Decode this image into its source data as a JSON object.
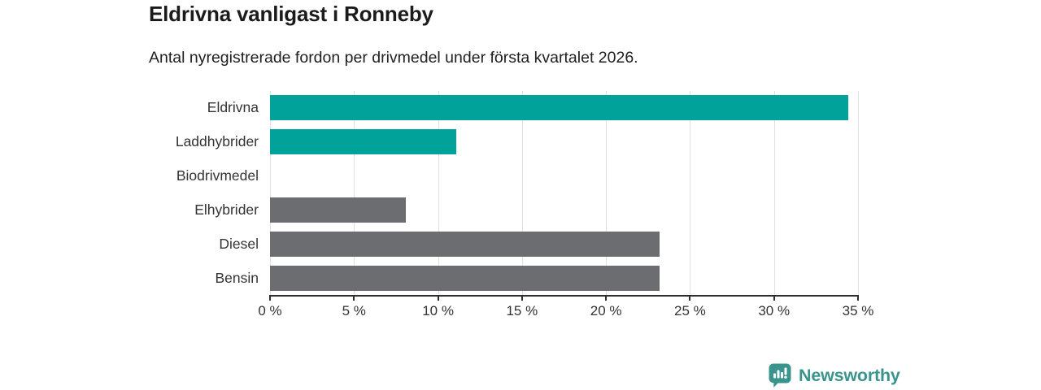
{
  "header": {
    "title": "Eldrivna vanligast i Ronneby",
    "subtitle": "Antal nyregistrerade fordon per drivmedel under första kvartalet 2026."
  },
  "chart_data": {
    "type": "bar",
    "orientation": "horizontal",
    "title": "Eldrivna vanligast i Ronneby",
    "subtitle": "Antal nyregistrerade fordon per drivmedel under första kvartalet 2026.",
    "categories": [
      "Eldrivna",
      "Laddhybrider",
      "Biodrivmedel",
      "Elhybrider",
      "Diesel",
      "Bensin"
    ],
    "values": [
      34.4,
      11.1,
      0,
      8.1,
      23.2,
      23.2
    ],
    "unit": "%",
    "bar_colors": [
      "#00a29a",
      "#00a29a",
      "#6c6d71",
      "#6c6d71",
      "#6c6d71",
      "#6c6d71"
    ],
    "highlight_color": "#00a29a",
    "default_color": "#6c6d71",
    "xlim": [
      0,
      35
    ],
    "x_ticks": [
      0,
      5,
      10,
      15,
      20,
      25,
      30,
      35
    ],
    "x_tick_labels": [
      "0 %",
      "5 %",
      "10 %",
      "15 %",
      "20 %",
      "25 %",
      "30 %",
      "35 %"
    ],
    "grid": true,
    "gridline_color": "#e0e0e0",
    "axis_color": "#2e2e2e",
    "legend": "none"
  },
  "branding": {
    "logo_text": "Newsworthy",
    "logo_color": "#3a948e",
    "logo_icon": "bar-chart-speech-bubble-icon"
  }
}
